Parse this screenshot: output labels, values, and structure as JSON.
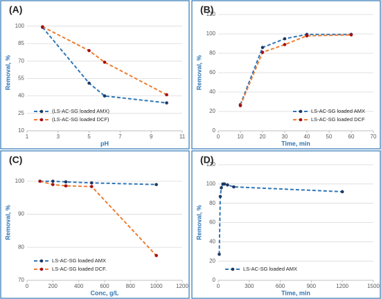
{
  "chart_data": [
    {
      "type": "line",
      "title": "(A)",
      "x_label": "pH",
      "y_label": "Removal, %",
      "x": [
        2,
        5,
        6,
        10
      ],
      "series": [
        {
          "name": "(LS-AC-SG loaded AMX)",
          "color": "#2e75b6",
          "marker_color": "#1f3864",
          "values": [
            99,
            51,
            40,
            34
          ]
        },
        {
          "name": "(LS-AC-SG loaded DCF)",
          "color": "#ed7d31",
          "marker_color": "#a50f15",
          "values": [
            99.5,
            79,
            69,
            41
          ]
        }
      ],
      "xlim": [
        1,
        11
      ],
      "xticks": [
        1,
        3,
        5,
        7,
        9,
        11
      ],
      "ylim": [
        10,
        110
      ],
      "yticks": [
        10,
        25,
        40,
        55,
        70,
        85,
        100
      ],
      "grid": true,
      "legend": "lower left"
    },
    {
      "type": "line",
      "title": "(B)",
      "x_label": "Time, min",
      "y_label": "Removal, %",
      "x": [
        10,
        20,
        30,
        40,
        60
      ],
      "series": [
        {
          "name": "LS-AC-SG loaded AMX",
          "color": "#2e75b6",
          "marker_color": "#1f3864",
          "values": [
            27,
            86,
            95,
            99.5,
            99.5
          ]
        },
        {
          "name": "LS-AC-SG loaded DCF",
          "color": "#ed7d31",
          "marker_color": "#a50f15",
          "values": [
            26,
            81,
            89,
            98,
            99
          ]
        }
      ],
      "xlim": [
        0,
        70
      ],
      "xticks": [
        0,
        10,
        20,
        30,
        40,
        50,
        60,
        70
      ],
      "ylim": [
        0,
        120
      ],
      "yticks": [
        0,
        20,
        40,
        60,
        80,
        100,
        120
      ],
      "grid": true,
      "legend": "lower right"
    },
    {
      "type": "line",
      "title": "(C)",
      "x_label": "Conc, g/L",
      "y_label": "Removal, %",
      "x": [
        100,
        200,
        300,
        500,
        1000
      ],
      "series": [
        {
          "name": "LS-AC-SG loaded AMX",
          "color": "#2e75b6",
          "marker_color": "#1f3864",
          "values": [
            100,
            100,
            99.8,
            99.5,
            99
          ]
        },
        {
          "name": "LS-AC-SG loaded DCF.",
          "color": "#ed7d31",
          "marker_color": "#a50f15",
          "values": [
            100,
            99,
            98.6,
            98.4,
            77.5
          ]
        }
      ],
      "xlim": [
        0,
        1200
      ],
      "xticks": [
        0,
        200,
        400,
        600,
        800,
        1000,
        1200
      ],
      "ylim": [
        70,
        105
      ],
      "yticks": [
        70,
        80,
        90,
        100
      ],
      "grid": true,
      "legend": "lower left"
    },
    {
      "type": "line",
      "title": "(D)",
      "x_label": "Time, min",
      "y_label": "Removal, %",
      "x": [
        10,
        20,
        30,
        45,
        60,
        90,
        150,
        1200
      ],
      "series": [
        {
          "name": "LS-AC-SG loaded AMX",
          "color": "#2e75b6",
          "marker_color": "#1f3864",
          "values": [
            27,
            87,
            96,
            100,
            100,
            99,
            97,
            92
          ]
        }
      ],
      "xlim": [
        0,
        1500
      ],
      "xticks": [
        0,
        300,
        600,
        900,
        1200,
        1500
      ],
      "ylim": [
        0,
        120
      ],
      "yticks": [
        0,
        20,
        40,
        60,
        80,
        100,
        120
      ],
      "grid": true,
      "legend": "lower left"
    }
  ]
}
